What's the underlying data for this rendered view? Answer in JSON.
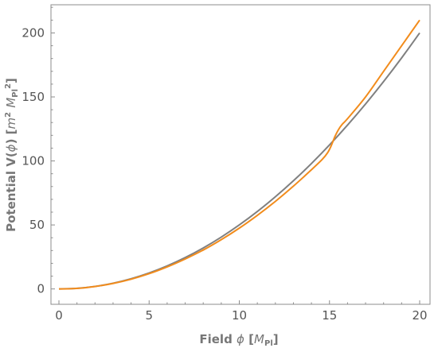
{
  "chart_data": {
    "type": "line",
    "xlim": [
      0,
      20
    ],
    "ylim": [
      -12,
      222
    ],
    "x_ticks": [
      0,
      5,
      10,
      15,
      20
    ],
    "y_ticks": [
      0,
      50,
      100,
      150,
      200
    ],
    "grid": false,
    "legend": "none",
    "xlabel": "Field  ϕ [MPl]",
    "ylabel": "Potential  V(ϕ) [m² MPl²]",
    "series": [
      {
        "color": "#808080",
        "x": [
          0,
          1,
          2,
          3,
          4,
          5,
          6,
          7,
          8,
          9,
          10,
          11,
          12,
          13,
          14,
          15,
          16,
          17,
          18,
          19,
          20
        ],
        "y": [
          0,
          0.5,
          2,
          4.5,
          8,
          12.5,
          18,
          24.5,
          32,
          40.5,
          50,
          60.5,
          72,
          84.5,
          98,
          112.5,
          128,
          144.5,
          162,
          180.5,
          200
        ]
      },
      {
        "color": "#f28c1c",
        "x": [
          0,
          1,
          2,
          3,
          4,
          5,
          6,
          7,
          8,
          9,
          10,
          11,
          12,
          13,
          14,
          14.6,
          14.9,
          15.1,
          15.3,
          15.5,
          15.7,
          16,
          17,
          18,
          19,
          20
        ],
        "y": [
          0,
          0.4,
          1.9,
          4.3,
          7.6,
          11.9,
          17.2,
          23.4,
          30.4,
          38.5,
          47.5,
          57.5,
          68.4,
          80.3,
          93.1,
          101.2,
          106.5,
          112,
          119,
          124.5,
          128.5,
          133,
          150,
          170,
          190,
          210
        ]
      }
    ]
  }
}
